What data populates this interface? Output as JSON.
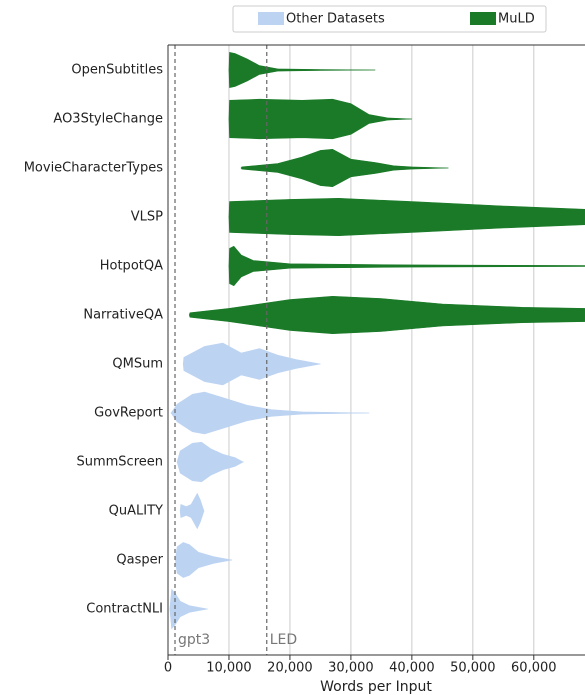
{
  "chart_data": {
    "type": "violin",
    "xlabel": "Words per Input",
    "xlim": [
      0,
      68400
    ],
    "xticks": [
      0,
      {
        "value": 10000,
        "label": "10,000"
      },
      {
        "value": 20000,
        "label": "20,000"
      },
      {
        "value": 30000,
        "label": "30,000"
      },
      {
        "value": 40000,
        "label": "40,000"
      },
      {
        "value": 50000,
        "label": "50,000"
      },
      {
        "value": 60000,
        "label": "60,000"
      }
    ],
    "grid": true,
    "legend": "top",
    "reference_lines": [
      {
        "value": 1150,
        "label": "gpt3"
      },
      {
        "value": 16200,
        "label": "LED"
      }
    ],
    "series": [
      {
        "name": "Other Datasets",
        "color": "#bcd3f2",
        "categories": [
          "QMSum",
          "GovReport",
          "SummScreen",
          "QuALITY",
          "Qasper",
          "ContractNLI"
        ],
        "x": [
          [
            2500,
            2600,
            6000,
            9000,
            12000,
            15000,
            18000,
            21000,
            25000
          ],
          [
            500,
            1500,
            4000,
            6000,
            9000,
            13000,
            17000,
            22000,
            33000
          ],
          [
            1500,
            2000,
            4000,
            5500,
            7000,
            9000,
            11000,
            12300
          ],
          [
            2000,
            2100,
            3000,
            3800,
            4800,
            5300,
            5900
          ],
          [
            1200,
            1500,
            2500,
            3500,
            5000,
            7500,
            10500
          ],
          [
            300,
            600,
            1200,
            2000,
            3500,
            6500
          ]
        ],
        "density": [
          [
            0,
            0.3,
            0.8,
            0.95,
            0.5,
            0.7,
            0.4,
            0.2,
            0
          ],
          [
            0,
            0.4,
            0.85,
            0.95,
            0.7,
            0.35,
            0.15,
            0.05,
            0
          ],
          [
            0,
            0.5,
            0.85,
            0.9,
            0.6,
            0.35,
            0.2,
            0
          ],
          [
            0,
            0.3,
            0.2,
            0.3,
            0.8,
            0.5,
            0
          ],
          [
            0,
            0.6,
            0.8,
            0.7,
            0.35,
            0.15,
            0
          ],
          [
            0,
            0.9,
            0.7,
            0.35,
            0.15,
            0
          ]
        ]
      },
      {
        "name": "MuLD",
        "color": "#1a7a28",
        "categories": [
          "OpenSubtitles",
          "AO3StyleChange",
          "MovieCharacterTypes",
          "VLSP",
          "HotpotQA",
          "NarrativeQA"
        ],
        "x": [
          [
            10000,
            10100,
            11000,
            13000,
            15000,
            18000,
            25000,
            34000
          ],
          [
            10000,
            10100,
            15000,
            22000,
            27000,
            30000,
            33000,
            36000,
            40000
          ],
          [
            12000,
            12100,
            18000,
            22000,
            25000,
            27000,
            30000,
            34000,
            37000,
            40000,
            46000
          ],
          [
            10000,
            10100,
            20000,
            28000,
            40000,
            55000,
            68400
          ],
          [
            10000,
            10100,
            10800,
            12000,
            14000,
            20000,
            40000,
            68400
          ],
          [
            3500,
            3600,
            10000,
            20000,
            27000,
            35000,
            45000,
            58000,
            68400
          ]
        ],
        "density": [
          [
            0,
            0.8,
            0.75,
            0.5,
            0.2,
            0.05,
            0.02,
            0
          ],
          [
            0,
            0.85,
            0.9,
            0.85,
            0.9,
            0.7,
            0.2,
            0.05,
            0
          ],
          [
            0,
            0.05,
            0.2,
            0.5,
            0.8,
            0.85,
            0.4,
            0.25,
            0.1,
            0.05,
            0
          ],
          [
            0,
            0.7,
            0.8,
            0.85,
            0.7,
            0.5,
            0.35
          ],
          [
            0,
            0.8,
            0.9,
            0.5,
            0.25,
            0.1,
            0.05,
            0.02
          ],
          [
            0,
            0.1,
            0.3,
            0.7,
            0.85,
            0.75,
            0.5,
            0.35,
            0.3
          ]
        ]
      }
    ]
  }
}
